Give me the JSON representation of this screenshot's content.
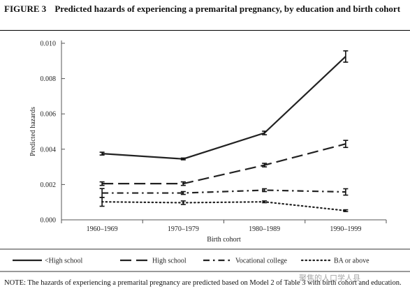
{
  "figure": {
    "label": "FIGURE 3",
    "title": "Predicted hazards of experiencing a premarital pregnancy, by education and birth cohort",
    "note": "NOTE: The hazards of experiencing a premarital pregnancy are predicted based on Model 2 of Table 3 with birth cohort and education."
  },
  "watermark": {
    "text": "聚焦的人口学人县"
  },
  "chart_data": {
    "type": "line",
    "categories": [
      "1960–1969",
      "1970–1979",
      "1980–1989",
      "1990–1999"
    ],
    "xlabel": "Birth cohort",
    "ylabel": "Predicted hazards",
    "ylim": [
      0,
      0.01
    ],
    "yticks": [
      "0.000",
      "0.002",
      "0.004",
      "0.006",
      "0.008",
      "0.010"
    ],
    "grid": false,
    "legend_position": "bottom",
    "series": [
      {
        "name": "<High school",
        "style": "solid",
        "color": "#222222",
        "values": [
          0.00375,
          0.00345,
          0.00492,
          0.00925
        ],
        "errors": [
          8e-05,
          5e-05,
          0.0001,
          0.00032
        ]
      },
      {
        "name": "High school",
        "style": "longdash",
        "color": "#222222",
        "values": [
          0.00205,
          0.00205,
          0.0031,
          0.0043
        ],
        "errors": [
          0.0001,
          0.0001,
          0.0001,
          0.0002
        ]
      },
      {
        "name": "Vocational college",
        "style": "dashdot",
        "color": "#222222",
        "values": [
          0.00152,
          0.00152,
          0.00168,
          0.00158
        ],
        "errors": [
          0.00025,
          8e-05,
          8e-05,
          0.00018
        ]
      },
      {
        "name": "BA or above",
        "style": "dotted",
        "color": "#222222",
        "values": [
          0.00102,
          0.00097,
          0.00102,
          0.00052
        ],
        "errors": [
          0.00025,
          0.0001,
          5e-05,
          5e-05
        ]
      }
    ]
  }
}
